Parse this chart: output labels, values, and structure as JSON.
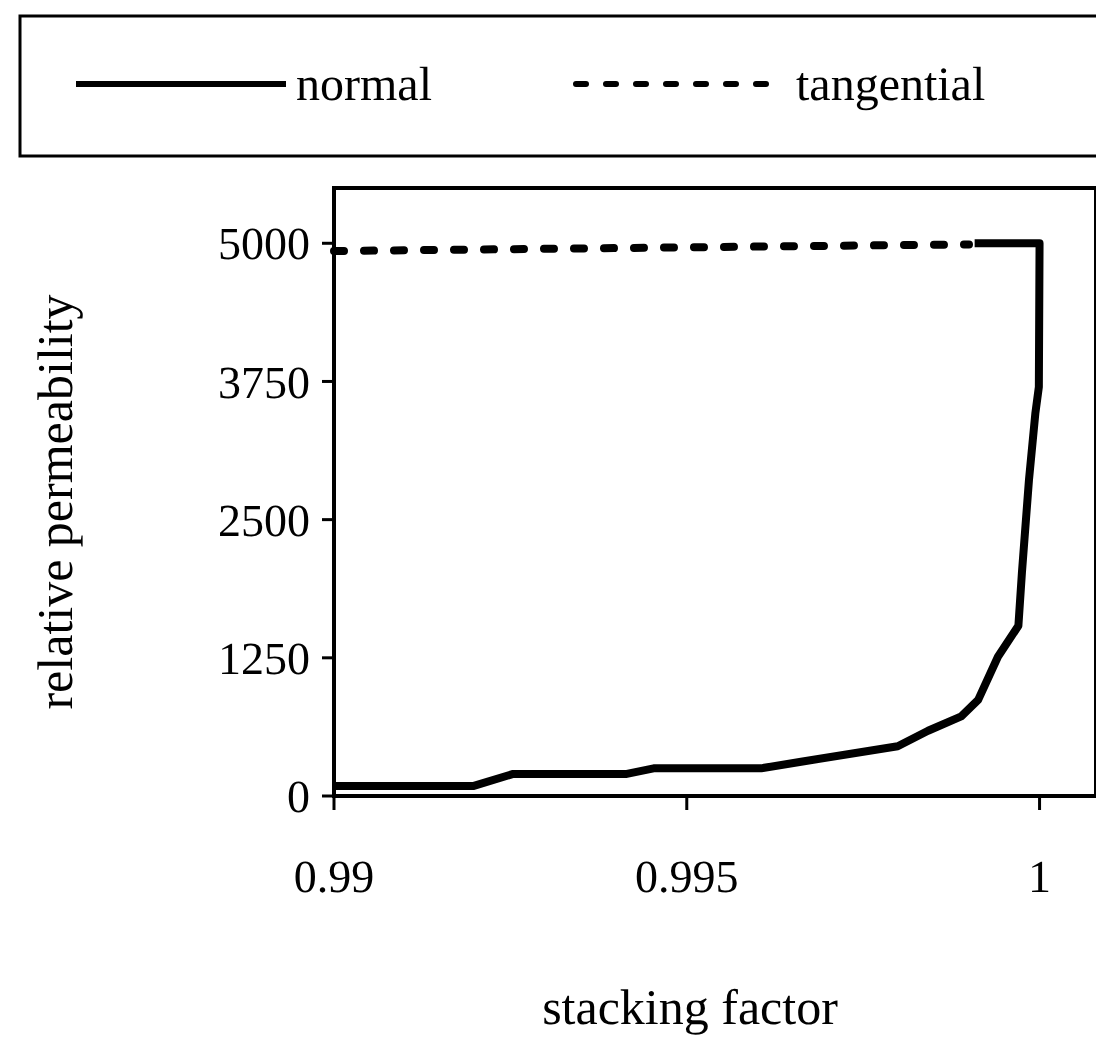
{
  "chart_data": {
    "type": "line",
    "xlabel": "stacking factor",
    "ylabel": "relative permeability",
    "xlim": [
      0.99,
      1.0008
    ],
    "ylim": [
      0,
      5500
    ],
    "xticks": [
      0.99,
      0.995,
      1
    ],
    "yticks": [
      0,
      1250,
      2500,
      3750,
      5000
    ],
    "legend": "top",
    "grid": false,
    "marker": "none",
    "series": [
      {
        "name": "normal",
        "color": "#000000",
        "line_style": "solid",
        "x": [
          0.99,
          0.99197,
          0.99254,
          0.99415,
          0.99453,
          0.99605,
          0.99662,
          0.99799,
          0.99842,
          0.99889,
          0.99913,
          0.99941,
          0.9997,
          0.99975,
          0.99985,
          0.99994,
          0.99999,
          1,
          0.99908
        ],
        "values": [
          90,
          90,
          200,
          200,
          250,
          250,
          310,
          450,
          590,
          720,
          870,
          1260,
          1540,
          2020,
          2860,
          3460,
          3700,
          5000,
          5000
        ]
      },
      {
        "name": "tangential",
        "color": "#000000",
        "line_style": "dotted",
        "x": [
          0.99,
          0.999
        ],
        "values": [
          4930,
          4990
        ]
      }
    ]
  }
}
